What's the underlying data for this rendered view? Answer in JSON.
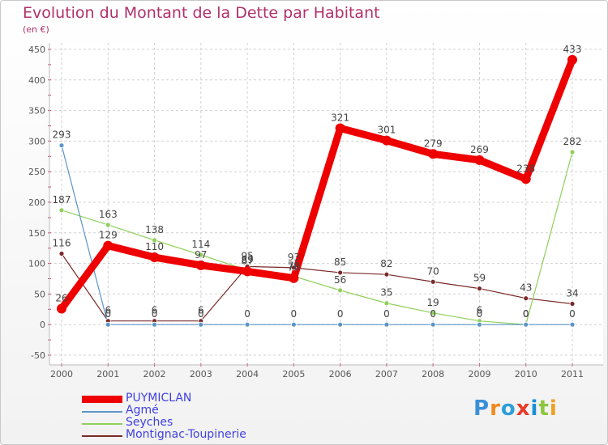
{
  "header": {
    "title": "Evolution du Montant de la Dette par Habitant",
    "subtitle": "(en €)"
  },
  "logo": {
    "letters": [
      "P",
      "r",
      "o",
      "x",
      "i",
      "t",
      "i"
    ],
    "colors": [
      "#3a8fd8",
      "#f08a1e",
      "#2f9fd8",
      "#e83a2a",
      "#1a8fd8",
      "#8cc63f",
      "#f0a01e"
    ]
  },
  "chart_data": {
    "type": "line",
    "title": "Evolution du Montant de la Dette par Habitant",
    "ylabel": "(en €)",
    "xlabel": "",
    "x": [
      "2000",
      "2001",
      "2002",
      "2003",
      "2004",
      "2005",
      "2006",
      "2007",
      "2008",
      "2009",
      "2010",
      "2011"
    ],
    "ylim": [
      -50,
      450
    ],
    "yticks": [
      "-50",
      "0",
      "50",
      "100",
      "150",
      "200",
      "250",
      "300",
      "350",
      "400",
      "450"
    ],
    "grid": true,
    "legend_position": "bottom-left",
    "series": [
      {
        "name": "PUYMICLAN",
        "color": "#ee0000",
        "values": [
          26,
          129,
          110,
          97,
          87,
          76,
          321,
          301,
          279,
          269,
          238,
          433
        ],
        "labels": [
          "26",
          "129",
          "110",
          "97",
          "87",
          "76",
          "321",
          "301",
          "279",
          "269",
          "238",
          "433"
        ]
      },
      {
        "name": "Agmé",
        "color": "#5b95c8",
        "values": [
          293,
          0,
          0,
          0,
          0,
          0,
          0,
          0,
          0,
          0,
          0,
          0
        ],
        "labels": [
          "293",
          "0",
          "0",
          "0",
          "0",
          "0",
          "0",
          "0",
          "0",
          "0",
          "0",
          "0"
        ]
      },
      {
        "name": "Seyches",
        "color": "#8fd05a",
        "values": [
          187,
          163,
          138,
          114,
          89,
          79,
          56,
          35,
          19,
          6,
          0,
          282
        ],
        "labels": [
          "187",
          "163",
          "138",
          "114",
          "89",
          "79",
          "56",
          "35",
          "19",
          "6",
          "0",
          "282"
        ]
      },
      {
        "name": "Montignac-Toupinerie",
        "color": "#7a2a2a",
        "values": [
          116,
          6,
          6,
          6,
          95,
          93,
          85,
          82,
          70,
          59,
          43,
          34
        ],
        "labels": [
          "116",
          "6",
          "6",
          "6",
          "95",
          "93",
          "85",
          "82",
          "70",
          "59",
          "43",
          "34"
        ]
      }
    ]
  }
}
